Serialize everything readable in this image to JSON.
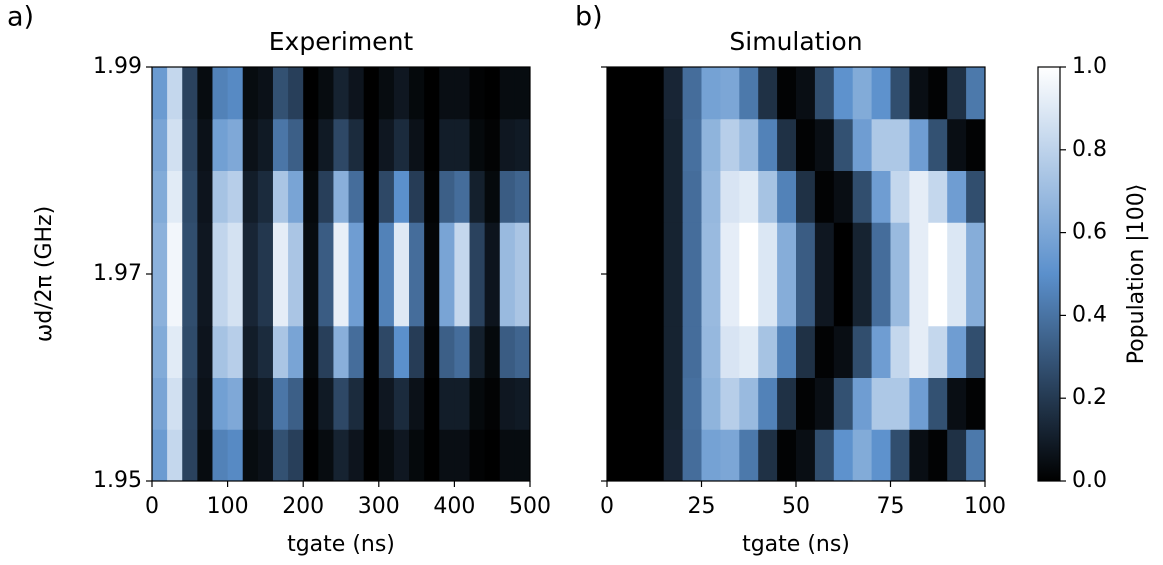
{
  "chart_data": [
    {
      "type": "heatmap",
      "panel_label": "a)",
      "title": "Experiment",
      "xlabel": "tgate (ns)",
      "ylabel": "ωd/2π (GHz)",
      "xlim": [
        0,
        500
      ],
      "ylim": [
        1.95,
        1.99
      ],
      "xticks": [
        0,
        100,
        200,
        300,
        400,
        500
      ],
      "yticks": [
        1.95,
        1.97,
        1.99
      ],
      "show_ytick_labels": true,
      "x": [
        10,
        30,
        50,
        70,
        90,
        110,
        130,
        150,
        170,
        190,
        210,
        230,
        250,
        270,
        290,
        310,
        330,
        350,
        370,
        390,
        410,
        430,
        450,
        470,
        490
      ],
      "y": [
        1.9525,
        1.9575,
        1.9625,
        1.9675,
        1.9725,
        1.9775,
        1.9825,
        1.9875
      ],
      "values": [
        [
          0.55,
          0.82,
          0.23,
          0.04,
          0.45,
          0.48,
          0.04,
          0.06,
          0.28,
          0.22,
          0.0,
          0.04,
          0.12,
          0.07,
          0.0,
          0.04,
          0.08,
          0.03,
          0.0,
          0.05,
          0.05,
          0.01,
          0.0,
          0.04,
          0.04
        ],
        [
          0.59,
          0.86,
          0.24,
          0.06,
          0.57,
          0.61,
          0.06,
          0.09,
          0.41,
          0.33,
          0.01,
          0.09,
          0.25,
          0.15,
          0.0,
          0.08,
          0.15,
          0.06,
          0.0,
          0.1,
          0.1,
          0.03,
          0.01,
          0.08,
          0.09
        ],
        [
          0.62,
          0.91,
          0.26,
          0.07,
          0.73,
          0.78,
          0.1,
          0.15,
          0.74,
          0.59,
          0.03,
          0.22,
          0.64,
          0.38,
          0.0,
          0.25,
          0.5,
          0.21,
          0.01,
          0.33,
          0.38,
          0.11,
          0.03,
          0.32,
          0.35
        ],
        [
          0.65,
          0.96,
          0.27,
          0.08,
          0.81,
          0.87,
          0.13,
          0.19,
          0.92,
          0.74,
          0.04,
          0.32,
          0.93,
          0.56,
          0.0,
          0.45,
          0.9,
          0.38,
          0.02,
          0.59,
          0.82,
          0.23,
          0.07,
          0.69,
          0.74
        ],
        [
          0.65,
          0.96,
          0.27,
          0.08,
          0.81,
          0.87,
          0.13,
          0.19,
          0.92,
          0.74,
          0.04,
          0.32,
          0.93,
          0.56,
          0.0,
          0.45,
          0.9,
          0.38,
          0.02,
          0.59,
          0.82,
          0.23,
          0.07,
          0.69,
          0.74
        ],
        [
          0.62,
          0.91,
          0.26,
          0.07,
          0.73,
          0.78,
          0.1,
          0.15,
          0.74,
          0.59,
          0.03,
          0.22,
          0.64,
          0.38,
          0.0,
          0.25,
          0.5,
          0.21,
          0.01,
          0.33,
          0.38,
          0.11,
          0.03,
          0.32,
          0.35
        ],
        [
          0.59,
          0.86,
          0.24,
          0.06,
          0.57,
          0.61,
          0.06,
          0.09,
          0.41,
          0.33,
          0.01,
          0.09,
          0.25,
          0.15,
          0.0,
          0.08,
          0.15,
          0.06,
          0.0,
          0.1,
          0.1,
          0.03,
          0.01,
          0.08,
          0.09
        ],
        [
          0.55,
          0.82,
          0.23,
          0.04,
          0.45,
          0.48,
          0.04,
          0.06,
          0.28,
          0.22,
          0.0,
          0.04,
          0.12,
          0.07,
          0.0,
          0.04,
          0.08,
          0.03,
          0.0,
          0.05,
          0.05,
          0.01,
          0.0,
          0.04,
          0.04
        ]
      ]
    },
    {
      "type": "heatmap",
      "panel_label": "b)",
      "title": "Simulation",
      "xlabel": "tgate (ns)",
      "xlim": [
        0,
        100
      ],
      "ylim": [
        1.95,
        1.99
      ],
      "xticks": [
        0,
        25,
        50,
        75,
        100
      ],
      "yticks": [
        1.95,
        1.97,
        1.99
      ],
      "show_ytick_labels": false,
      "x": [
        2.5,
        7.5,
        12.5,
        17.5,
        22.5,
        27.5,
        32.5,
        37.5,
        42.5,
        47.5,
        52.5,
        57.5,
        62.5,
        67.5,
        72.5,
        77.5,
        82.5,
        87.5,
        92.5,
        97.5
      ],
      "y": [
        1.9525,
        1.9575,
        1.9625,
        1.9675,
        1.9725,
        1.9775,
        1.9825,
        1.9875
      ],
      "values": [
        [
          0,
          0,
          0,
          0.13,
          0.38,
          0.58,
          0.6,
          0.42,
          0.17,
          0.01,
          0.05,
          0.27,
          0.51,
          0.62,
          0.51,
          0.27,
          0.05,
          0.01,
          0.17,
          0.42
        ],
        [
          0,
          0,
          0,
          0.12,
          0.39,
          0.66,
          0.78,
          0.69,
          0.45,
          0.17,
          0.01,
          0.05,
          0.28,
          0.56,
          0.75,
          0.75,
          0.56,
          0.28,
          0.05,
          0.01
        ],
        [
          0,
          0,
          0,
          0.12,
          0.38,
          0.68,
          0.88,
          0.91,
          0.73,
          0.45,
          0.17,
          0.01,
          0.05,
          0.27,
          0.56,
          0.82,
          0.92,
          0.82,
          0.56,
          0.27
        ],
        [
          0,
          0,
          0,
          0.12,
          0.38,
          0.69,
          0.92,
          1.0,
          0.89,
          0.63,
          0.32,
          0.08,
          0.0,
          0.12,
          0.38,
          0.69,
          0.92,
          1.0,
          0.89,
          0.63
        ],
        [
          0,
          0,
          0,
          0.12,
          0.38,
          0.69,
          0.92,
          1.0,
          0.89,
          0.63,
          0.32,
          0.08,
          0.0,
          0.12,
          0.38,
          0.69,
          0.92,
          1.0,
          0.89,
          0.63
        ],
        [
          0,
          0,
          0,
          0.12,
          0.38,
          0.68,
          0.88,
          0.91,
          0.73,
          0.45,
          0.17,
          0.01,
          0.05,
          0.27,
          0.56,
          0.82,
          0.92,
          0.82,
          0.56,
          0.27
        ],
        [
          0,
          0,
          0,
          0.12,
          0.39,
          0.66,
          0.78,
          0.69,
          0.45,
          0.17,
          0.01,
          0.05,
          0.28,
          0.56,
          0.75,
          0.75,
          0.56,
          0.28,
          0.05,
          0.01
        ],
        [
          0,
          0,
          0,
          0.13,
          0.38,
          0.58,
          0.6,
          0.42,
          0.17,
          0.01,
          0.05,
          0.27,
          0.51,
          0.62,
          0.51,
          0.27,
          0.05,
          0.01,
          0.17,
          0.42
        ]
      ]
    },
    {
      "type": "colorbar",
      "label": "Population |100⟩",
      "clim": [
        0,
        1
      ],
      "colormap": [
        "#000000",
        "#5b90cc",
        "#ffffff"
      ],
      "cticks": [
        {
          "value": 0,
          "label": "0.0"
        },
        {
          "value": 0.2,
          "label": "0.2"
        },
        {
          "value": 0.4,
          "label": "0.4"
        },
        {
          "value": 0.6,
          "label": "0.6"
        },
        {
          "value": 0.8,
          "label": "0.8"
        },
        {
          "value": 1,
          "label": "1.0"
        }
      ]
    }
  ]
}
